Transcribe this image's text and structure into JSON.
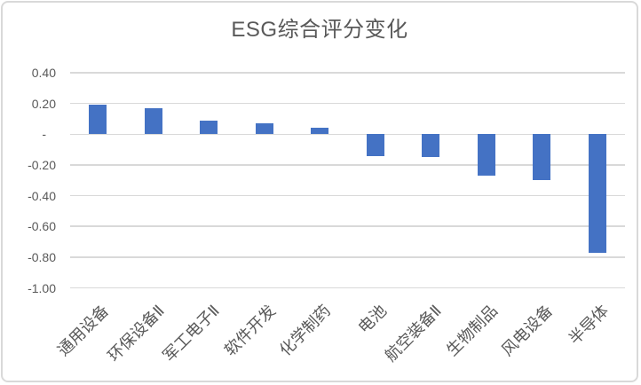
{
  "chart_data": {
    "type": "bar",
    "title": "ESG综合评分变化",
    "categories": [
      "通用设备",
      "环保设备Ⅱ",
      "军工电子Ⅱ",
      "软件开发",
      "化学制药",
      "电池",
      "航空装备Ⅱ",
      "生物制品",
      "风电设备",
      "半导体"
    ],
    "values": [
      0.19,
      0.17,
      0.09,
      0.07,
      0.04,
      -0.14,
      -0.15,
      -0.27,
      -0.3,
      -0.77
    ],
    "xlabel": "",
    "ylabel": "",
    "ylim": [
      -1.0,
      0.4
    ],
    "yticks": [
      {
        "value": 0.4,
        "label": "0.40"
      },
      {
        "value": 0.2,
        "label": "0.20"
      },
      {
        "value": 0.0,
        "label": "-"
      },
      {
        "value": -0.2,
        "label": "-0.20"
      },
      {
        "value": -0.4,
        "label": "-0.40"
      },
      {
        "value": -0.6,
        "label": "-0.60"
      },
      {
        "value": -0.8,
        "label": "-0.80"
      },
      {
        "value": -1.0,
        "label": "-1.00"
      }
    ],
    "grid": true,
    "legend_position": "none",
    "bar_color": "#4472C4",
    "gridline_color": "#D9D9D9",
    "text_color": "#595959",
    "category_label_rotation_deg": 45
  }
}
